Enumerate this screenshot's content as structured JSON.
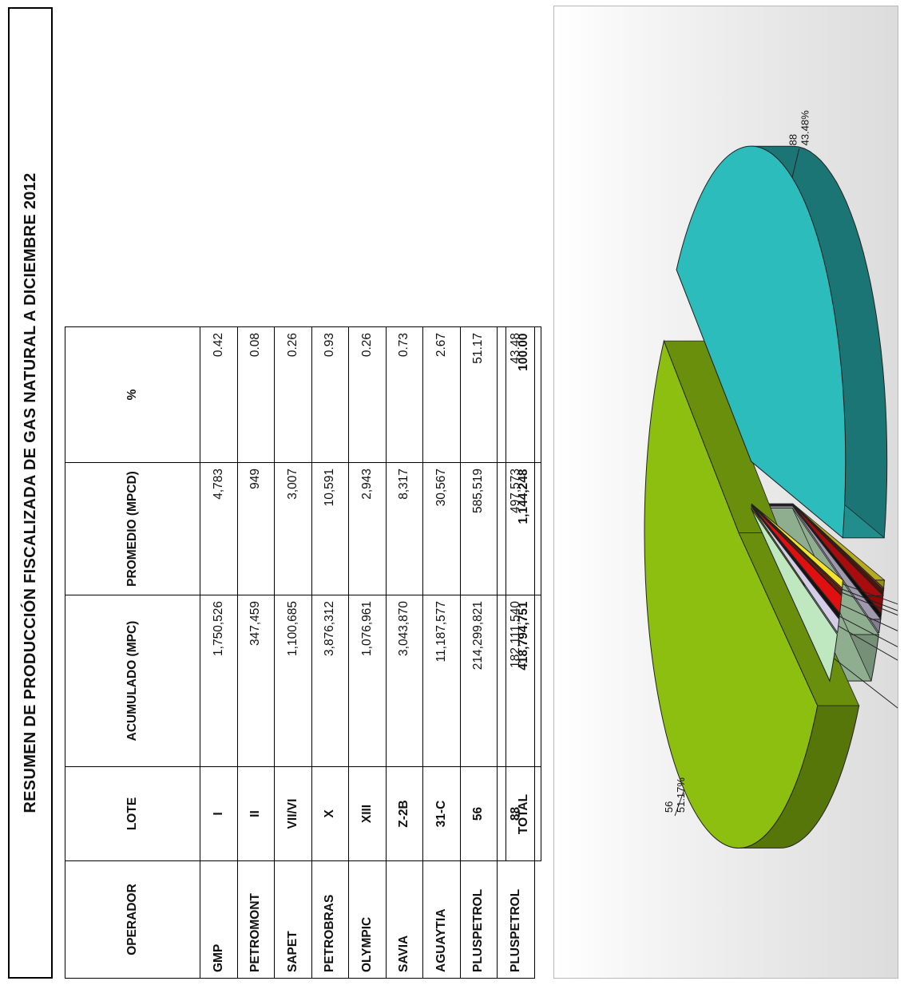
{
  "title": "RESUMEN DE PRODUCCIÓN FISCALIZADA DE GAS NATURAL A  DICIEMBRE 2012",
  "table": {
    "headers": [
      "OPERADOR",
      "LOTE",
      "ACUMULADO (MPC)",
      "PROMEDIO (MPCD)",
      "%"
    ],
    "rows": [
      [
        "GMP",
        "I",
        "1,750,526",
        "4,783",
        "0.42"
      ],
      [
        "PETROMONT",
        "II",
        "347,459",
        "949",
        "0.08"
      ],
      [
        "SAPET",
        "VII/VI",
        "1,100,685",
        "3,007",
        "0.26"
      ],
      [
        "PETROBRAS",
        "X",
        "3,876,312",
        "10,591",
        "0.93"
      ],
      [
        "OLYMPIC",
        "XIII",
        "1,076,961",
        "2,943",
        "0.26"
      ],
      [
        "SAVIA",
        "Z-2B",
        "3,043,870",
        "8,317",
        "0.73"
      ],
      [
        "AGUAYTIA",
        "31-C",
        "11,187,577",
        "30,567",
        "2.67"
      ],
      [
        "PLUSPETROL",
        "56",
        "214,299,821",
        "585,519",
        "51.17"
      ],
      [
        "PLUSPETROL",
        "88",
        "182,111,540",
        "497,573",
        "43.48"
      ]
    ]
  },
  "total": {
    "label": "TOTAL",
    "acumulado": "418,794,751",
    "promedio": "1,144,248",
    "percent": "100.00"
  },
  "chart_data": {
    "type": "pie",
    "title": "",
    "slices": [
      {
        "label": "I",
        "value": 0.42,
        "pct_label": "0.42%",
        "color": "#f2e22a"
      },
      {
        "label": "II",
        "value": 0.08,
        "pct_label": "0.08%",
        "color": "#e07020"
      },
      {
        "label": "VII/VI",
        "value": 0.26,
        "pct_label": "0.26%",
        "color": "#6b1a10"
      },
      {
        "label": "X",
        "value": 0.93,
        "pct_label": "0.93%",
        "color": "#e01010"
      },
      {
        "label": "XIII",
        "value": 0.26,
        "pct_label": "0.26%",
        "color": "#111111"
      },
      {
        "label": "Z-2B",
        "value": 0.73,
        "pct_label": "0.73%",
        "color": "#d4cce8"
      },
      {
        "label": "31-C",
        "value": 2.67,
        "pct_label": "2.67%",
        "color": "#bfe8c0"
      },
      {
        "label": "56",
        "value": 51.17,
        "pct_label": "51.17%",
        "color": "#8cbf10"
      },
      {
        "label": "88",
        "value": 43.48,
        "pct_label": "43.48%",
        "color": "#2cbcbc"
      }
    ]
  }
}
